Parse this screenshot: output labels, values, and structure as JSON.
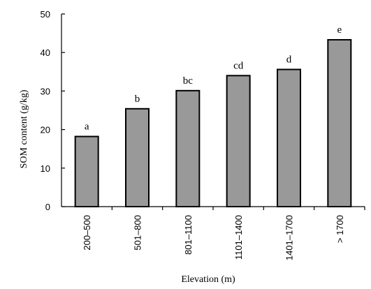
{
  "chart_data": {
    "type": "bar",
    "categories": [
      "200–500",
      "501–800",
      "801–1100",
      "1101–1400",
      "1401–1700",
      "> 1700"
    ],
    "values": [
      18.2,
      25.4,
      30.1,
      34.0,
      35.6,
      43.3
    ],
    "significance_letters": [
      "a",
      "b",
      "bc",
      "cd",
      "d",
      "e"
    ],
    "xlabel": "Elevation (m)",
    "ylabel": "SOM content (g/kg)",
    "ylim": [
      0,
      50
    ],
    "yticks": [
      0,
      10,
      20,
      30,
      40,
      50
    ],
    "bar_color": "#999999",
    "bar_edge_color": "#000000",
    "grid": false,
    "legend": "none"
  }
}
